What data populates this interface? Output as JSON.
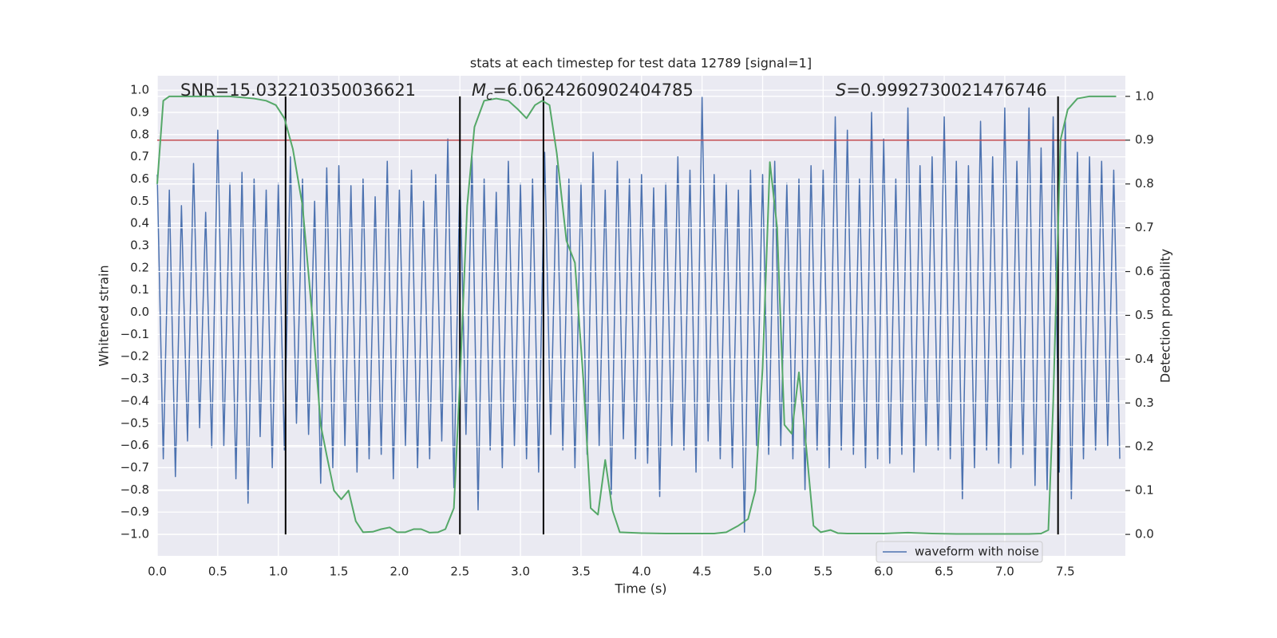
{
  "chart_data": {
    "type": "line",
    "title": "stats at each timestep for test data 12789 [signal=1]",
    "xlabel": "Time (s)",
    "ylabel": "Whitened strain",
    "y2label": "Detection probability",
    "annotations": [
      {
        "text": "SNR=15.032210350036621"
      },
      {
        "symbol": "M",
        "subscript": "c",
        "text": "=6.0624260902404785"
      },
      {
        "symbol": "S",
        "text": "=0.9992730021476746"
      }
    ],
    "legend": "lower right",
    "grid": true,
    "xlim": [
      0,
      7.996
    ],
    "ylim": [
      -1.097,
      1.065
    ],
    "y2lim": [
      -0.049,
      1.047
    ],
    "xticks": [
      {
        "value": 0,
        "label": "0.0"
      },
      {
        "value": 0.5,
        "label": "0.5"
      },
      {
        "value": 1,
        "label": "1.0"
      },
      {
        "value": 1.5,
        "label": "1.5"
      },
      {
        "value": 2,
        "label": "2.0"
      },
      {
        "value": 2.5,
        "label": "2.5"
      },
      {
        "value": 3,
        "label": "3.0"
      },
      {
        "value": 3.5,
        "label": "3.5"
      },
      {
        "value": 4,
        "label": "4.0"
      },
      {
        "value": 4.5,
        "label": "4.5"
      },
      {
        "value": 5,
        "label": "5.0"
      },
      {
        "value": 5.5,
        "label": "5.5"
      },
      {
        "value": 6,
        "label": "6.0"
      },
      {
        "value": 6.5,
        "label": "6.5"
      },
      {
        "value": 7,
        "label": "7.0"
      },
      {
        "value": 7.5,
        "label": "7.5"
      }
    ],
    "yticks": [
      {
        "value": -1,
        "label": "−1.0"
      },
      {
        "value": -0.9,
        "label": "−0.9"
      },
      {
        "value": -0.8,
        "label": "−0.8"
      },
      {
        "value": -0.7,
        "label": "−0.7"
      },
      {
        "value": -0.6,
        "label": "−0.6"
      },
      {
        "value": -0.5,
        "label": "−0.5"
      },
      {
        "value": -0.4,
        "label": "−0.4"
      },
      {
        "value": -0.3,
        "label": "−0.3"
      },
      {
        "value": -0.2,
        "label": "−0.2"
      },
      {
        "value": -0.1,
        "label": "−0.1"
      },
      {
        "value": 0,
        "label": "0.0"
      },
      {
        "value": 0.1,
        "label": "0.1"
      },
      {
        "value": 0.2,
        "label": "0.2"
      },
      {
        "value": 0.3,
        "label": "0.3"
      },
      {
        "value": 0.4,
        "label": "0.4"
      },
      {
        "value": 0.5,
        "label": "0.5"
      },
      {
        "value": 0.6,
        "label": "0.6"
      },
      {
        "value": 0.7,
        "label": "0.7"
      },
      {
        "value": 0.8,
        "label": "0.8"
      },
      {
        "value": 0.9,
        "label": "0.9"
      },
      {
        "value": 1,
        "label": "1.0"
      }
    ],
    "y2ticks": [
      {
        "value": 0,
        "label": "0.0"
      },
      {
        "value": 0.1,
        "label": "0.1"
      },
      {
        "value": 0.2,
        "label": "0.2"
      },
      {
        "value": 0.3,
        "label": "0.3"
      },
      {
        "value": 0.4,
        "label": "0.4"
      },
      {
        "value": 0.5,
        "label": "0.5"
      },
      {
        "value": 0.6,
        "label": "0.6"
      },
      {
        "value": 0.7,
        "label": "0.7"
      },
      {
        "value": 0.8,
        "label": "0.8"
      },
      {
        "value": 0.9,
        "label": "0.9"
      },
      {
        "value": 1,
        "label": "1.0"
      }
    ],
    "hlines": [
      {
        "value": 0.9,
        "axis": "y2",
        "color": "#c44e52"
      }
    ],
    "vlines": {
      "x": [
        1.06,
        2.5,
        3.19,
        7.44
      ],
      "span": [
        0,
        1
      ],
      "axis": "y2",
      "color": "#000000"
    },
    "series": [
      {
        "name": "waveform with noise",
        "color": "#4c72b0",
        "axis": "y",
        "x": [
          0,
          0.05,
          0.1,
          0.15,
          0.2,
          0.25,
          0.3,
          0.35,
          0.4,
          0.45,
          0.5,
          0.55,
          0.6,
          0.65,
          0.7,
          0.75,
          0.8,
          0.85,
          0.9,
          0.95,
          1,
          1.05,
          1.1,
          1.15,
          1.2,
          1.25,
          1.3,
          1.35,
          1.4,
          1.45,
          1.5,
          1.55,
          1.6,
          1.65,
          1.7,
          1.75,
          1.8,
          1.85,
          1.9,
          1.95,
          2,
          2.05,
          2.1,
          2.15,
          2.2,
          2.25,
          2.3,
          2.35,
          2.4,
          2.45,
          2.5,
          2.55,
          2.6,
          2.65,
          2.7,
          2.75,
          2.8,
          2.85,
          2.9,
          2.95,
          3,
          3.05,
          3.1,
          3.15,
          3.2,
          3.25,
          3.3,
          3.35,
          3.4,
          3.45,
          3.5,
          3.55,
          3.6,
          3.65,
          3.7,
          3.75,
          3.8,
          3.85,
          3.9,
          3.95,
          4,
          4.05,
          4.1,
          4.15,
          4.2,
          4.25,
          4.3,
          4.35,
          4.4,
          4.45,
          4.5,
          4.55,
          4.6,
          4.65,
          4.7,
          4.75,
          4.8,
          4.85,
          4.9,
          4.95,
          5,
          5.05,
          5.1,
          5.15,
          5.2,
          5.25,
          5.3,
          5.35,
          5.4,
          5.45,
          5.5,
          5.55,
          5.6,
          5.65,
          5.7,
          5.75,
          5.8,
          5.85,
          5.9,
          5.95,
          6,
          6.05,
          6.1,
          6.15,
          6.2,
          6.25,
          6.3,
          6.35,
          6.4,
          6.45,
          6.5,
          6.55,
          6.6,
          6.65,
          6.7,
          6.75,
          6.8,
          6.85,
          6.9,
          6.95,
          7,
          7.05,
          7.1,
          7.15,
          7.2,
          7.25,
          7.3,
          7.35,
          7.4,
          7.45,
          7.5,
          7.55,
          7.6,
          7.65,
          7.7,
          7.75,
          7.8,
          7.85,
          7.9,
          7.95
        ],
        "values": [
          0.62,
          -0.66,
          0.55,
          -0.74,
          0.48,
          -0.58,
          0.67,
          -0.52,
          0.45,
          -0.61,
          0.82,
          -0.6,
          0.58,
          -0.75,
          0.63,
          -0.86,
          0.6,
          -0.56,
          0.55,
          -0.7,
          0.58,
          -0.62,
          0.7,
          -0.5,
          0.6,
          -0.55,
          0.5,
          -0.77,
          0.65,
          -0.7,
          0.66,
          -0.6,
          0.57,
          -0.72,
          0.6,
          -0.66,
          0.52,
          -0.64,
          0.68,
          -0.75,
          0.55,
          -0.6,
          0.64,
          -0.7,
          0.5,
          -0.66,
          0.62,
          -0.58,
          0.78,
          -0.79,
          0.62,
          -0.55,
          0.7,
          -0.89,
          0.6,
          -0.62,
          0.54,
          -0.7,
          0.68,
          -0.6,
          0.58,
          -0.66,
          0.6,
          -0.72,
          0.72,
          -0.55,
          0.66,
          -0.62,
          0.6,
          -0.7,
          0.58,
          -0.64,
          0.72,
          -0.6,
          0.55,
          -0.82,
          0.68,
          -0.57,
          0.6,
          -0.66,
          0.62,
          -0.68,
          0.56,
          -0.83,
          0.58,
          -0.6,
          0.7,
          -0.62,
          0.64,
          -0.72,
          0.97,
          -0.58,
          0.62,
          -0.66,
          0.58,
          -0.7,
          0.55,
          -0.99,
          0.64,
          -0.6,
          0.62,
          -0.64,
          0.68,
          -0.6,
          0.58,
          -0.66,
          0.6,
          -0.8,
          0.66,
          -0.62,
          0.64,
          -0.7,
          0.88,
          -0.62,
          0.82,
          -0.64,
          0.6,
          -0.7,
          0.9,
          -0.66,
          0.78,
          -0.68,
          0.6,
          -0.64,
          0.92,
          -0.72,
          0.66,
          -0.6,
          0.7,
          -0.62,
          0.88,
          -0.66,
          0.68,
          -0.84,
          0.66,
          -0.7,
          0.86,
          -0.62,
          0.7,
          -0.68,
          0.92,
          -0.7,
          0.68,
          -0.64,
          0.92,
          -0.78,
          0.74,
          -0.8,
          0.88,
          -0.72,
          0.86,
          -0.84,
          0.72,
          -0.66,
          0.7,
          -0.62,
          0.68,
          -0.6,
          0.64,
          -0.66
        ]
      },
      {
        "color": "#55a868",
        "axis": "y2",
        "x": [
          0,
          0.05,
          0.1,
          0.2,
          0.4,
          0.6,
          0.8,
          0.9,
          0.98,
          1.05,
          1.12,
          1.2,
          1.28,
          1.35,
          1.4,
          1.46,
          1.52,
          1.58,
          1.64,
          1.7,
          1.78,
          1.85,
          1.92,
          1.98,
          2.05,
          2.12,
          2.18,
          2.25,
          2.32,
          2.38,
          2.45,
          2.5,
          2.56,
          2.62,
          2.7,
          2.8,
          2.9,
          2.98,
          3.05,
          3.12,
          3.18,
          3.24,
          3.3,
          3.38,
          3.45,
          3.52,
          3.58,
          3.64,
          3.7,
          3.76,
          3.82,
          3.9,
          4,
          4.2,
          4.4,
          4.6,
          4.7,
          4.8,
          4.88,
          4.94,
          5,
          5.06,
          5.12,
          5.18,
          5.24,
          5.3,
          5.36,
          5.42,
          5.48,
          5.56,
          5.62,
          5.7,
          6,
          6.2,
          6.4,
          6.6,
          6.8,
          7,
          7.2,
          7.3,
          7.36,
          7.4,
          7.46,
          7.52,
          7.6,
          7.7,
          7.8,
          7.92
        ],
        "values": [
          0.8,
          0.99,
          1,
          1,
          1,
          1,
          0.995,
          0.99,
          0.98,
          0.95,
          0.88,
          0.75,
          0.5,
          0.25,
          0.18,
          0.1,
          0.08,
          0.1,
          0.03,
          0.005,
          0.006,
          0.012,
          0.016,
          0.005,
          0.005,
          0.012,
          0.012,
          0.004,
          0.005,
          0.012,
          0.06,
          0.35,
          0.75,
          0.93,
          0.99,
          0.995,
          0.99,
          0.97,
          0.95,
          0.98,
          0.99,
          0.98,
          0.87,
          0.67,
          0.62,
          0.35,
          0.06,
          0.045,
          0.17,
          0.055,
          0.005,
          0.004,
          0.003,
          0.002,
          0.002,
          0.002,
          0.005,
          0.02,
          0.035,
          0.1,
          0.38,
          0.85,
          0.7,
          0.25,
          0.23,
          0.37,
          0.2,
          0.02,
          0.005,
          0.01,
          0.003,
          0.002,
          0.002,
          0.004,
          0.002,
          0.001,
          0.001,
          0.001,
          0.001,
          0.002,
          0.01,
          0.3,
          0.9,
          0.97,
          0.995,
          1,
          1,
          1
        ]
      }
    ]
  }
}
